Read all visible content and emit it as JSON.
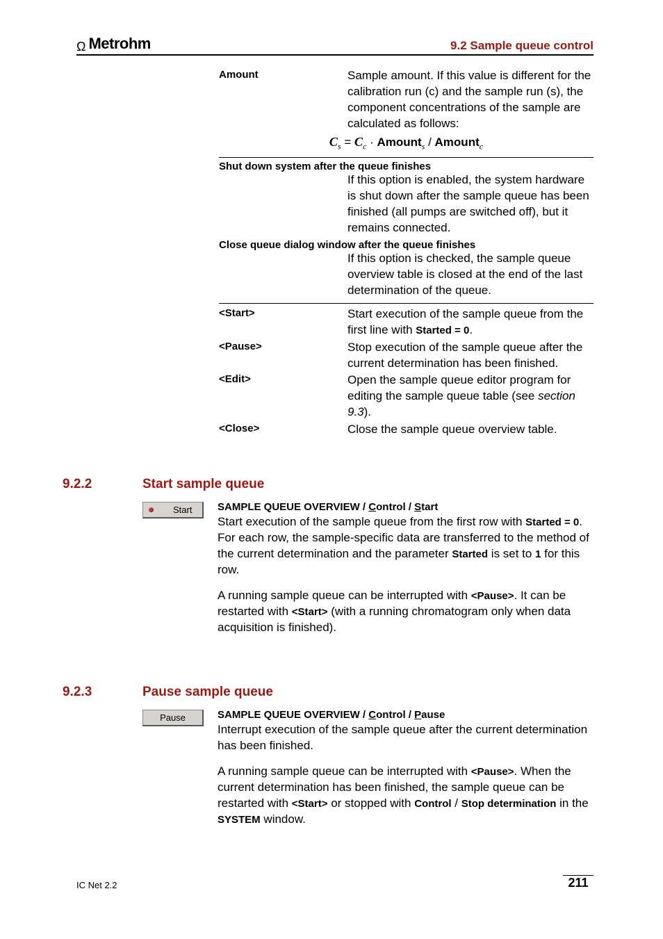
{
  "header": {
    "logo_text": "Metrohm",
    "section_right": "9.2  Sample queue control"
  },
  "defs": {
    "amount": {
      "term": "Amount",
      "desc": "Sample amount. If this value is different for the calibration run (c) and the sample run (s), the component concentrations of the sample are calculated as follows:"
    },
    "formula": {
      "cs": "C",
      "cs_sub": "s",
      "eq": " = ",
      "cc": "C",
      "cc_sub": "c",
      "dot": " · ",
      "amount_s": "Amount",
      "amount_s_sub": "s",
      "slash": " / ",
      "amount_c": "Amount",
      "amount_c_sub": "c"
    },
    "shutdown": {
      "head": "Shut down system after the queue finishes",
      "desc": "If this option is enabled, the system hardware is shut down after the sample queue has been finished (all pumps are switched off), but it remains connected."
    },
    "close_dlg": {
      "head": "Close queue dialog window after the queue finishes",
      "desc": "If this option is checked, the sample queue overview table is closed at the end of the last determination of the queue."
    },
    "start": {
      "term": "<Start>",
      "desc_a": "Start execution of the sample queue from the first line with ",
      "desc_bold": "Started = 0",
      "desc_b": "."
    },
    "pause": {
      "term": "<Pause>",
      "desc": "Stop execution of the sample queue after the current determination has been finished."
    },
    "edit": {
      "term": "<Edit>",
      "desc_a": "Open the sample queue editor program for editing the sample queue table (see ",
      "desc_ref": "section 9.3",
      "desc_b": ")."
    },
    "close": {
      "term": "<Close>",
      "desc": "Close the sample queue overview table."
    }
  },
  "s922": {
    "num": "9.2.2",
    "title": "Start sample queue",
    "btn_label": "Start",
    "path_a": "SAMPLE QUEUE OVERVIEW",
    "path_sep": " / ",
    "path_b": "Control",
    "path_c": "Start",
    "p1_a": "Start execution of the sample queue from the first row with ",
    "p1_b": "Started = 0",
    "p1_c": ". For each row, the sample-specific data are transferred to the method of the current determination and the parameter ",
    "p1_d": "Started",
    "p1_e": " is set to ",
    "p1_f": "1",
    "p1_g": " for this row.",
    "p2_a": "A running sample queue can be interrupted with ",
    "p2_b": "<Pause>",
    "p2_c": ". It can be restarted with ",
    "p2_d": "<Start>",
    "p2_e": " (with a running chromatogram only when data acquisition is finished)."
  },
  "s923": {
    "num": "9.2.3",
    "title": "Pause sample queue",
    "btn_label": "Pause",
    "path_a": "SAMPLE QUEUE OVERVIEW",
    "path_sep": " / ",
    "path_b": "Control",
    "path_c": "Pause",
    "p1": "Interrupt execution of the sample queue after the current determination has been finished.",
    "p2_a": "A running sample queue can be interrupted with ",
    "p2_b": "<Pause>",
    "p2_c": ". When the current determination has been finished, the sample queue can be restarted with ",
    "p2_d": "<Start>",
    "p2_e": " or stopped with ",
    "p2_f": "Control",
    "p2_g": " / ",
    "p2_h": "Stop determination",
    "p2_i": " in the ",
    "p2_j": "SYSTEM",
    "p2_k": " window."
  },
  "footer": {
    "left": "IC Net 2.2",
    "page": "211"
  },
  "colors": {
    "accent": "#9a1915",
    "button_bg": "#d7d3ce"
  }
}
